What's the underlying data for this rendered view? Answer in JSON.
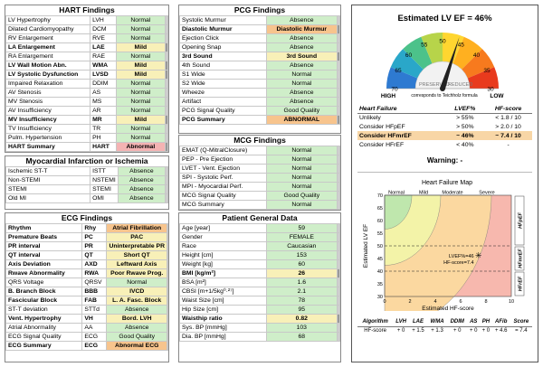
{
  "hart": {
    "title": "HART Findings",
    "rows": [
      {
        "label": "LV Hypertrophy",
        "code": "LVH",
        "value": "Normal",
        "c": "g",
        "b": false
      },
      {
        "label": "Dilated Cardiomyopathy",
        "code": "DCM",
        "value": "Normal",
        "c": "g",
        "b": false
      },
      {
        "label": "RV Enlargement",
        "code": "RVE",
        "value": "Normal",
        "c": "g",
        "b": false
      },
      {
        "label": "LA Enlargement",
        "code": "LAE",
        "value": "Mild",
        "c": "y",
        "b": true
      },
      {
        "label": "RA Enlargement",
        "code": "RAE",
        "value": "Normal",
        "c": "g",
        "b": false
      },
      {
        "label": "LV Wall Motion Abn.",
        "code": "WMA",
        "value": "Mild",
        "c": "y",
        "b": true
      },
      {
        "label": "LV Systolic Dysfunction",
        "code": "LVSD",
        "value": "Mild",
        "c": "y",
        "b": true
      },
      {
        "label": "Impaired Relaxation",
        "code": "DDIM",
        "value": "Normal",
        "c": "g",
        "b": false
      },
      {
        "label": "AV Stenosis",
        "code": "AS",
        "value": "Normal",
        "c": "g",
        "b": false
      },
      {
        "label": "MV Stenosis",
        "code": "MS",
        "value": "Normal",
        "c": "g",
        "b": false
      },
      {
        "label": "AV Insufficiency",
        "code": "AR",
        "value": "Normal",
        "c": "g",
        "b": false
      },
      {
        "label": "MV Insufficiency",
        "code": "MR",
        "value": "Mild",
        "c": "y",
        "b": true
      },
      {
        "label": "TV Insufficiency",
        "code": "TR",
        "value": "Normal",
        "c": "g",
        "b": false
      },
      {
        "label": "Pulm. Hypertension",
        "code": "PH",
        "value": "Normal",
        "c": "g",
        "b": false
      },
      {
        "label": "HART Summary",
        "code": "HART",
        "value": "Abnormal",
        "c": "r",
        "b": true
      }
    ]
  },
  "mi": {
    "title": "Myocardial Infarction or Ischemia",
    "rows": [
      {
        "label": "Ischemic ST-T",
        "code": "ISTT",
        "value": "Absence",
        "c": "g",
        "b": false
      },
      {
        "label": "Non-STEMI",
        "code": "NSTEMI",
        "value": "Absence",
        "c": "g",
        "b": false
      },
      {
        "label": "STEMI",
        "code": "STEMI",
        "value": "Absence",
        "c": "g",
        "b": false
      },
      {
        "label": "Old MI",
        "code": "OMI",
        "value": "Absence",
        "c": "g",
        "b": false
      }
    ]
  },
  "ecg": {
    "title": "ECG Findings",
    "rows": [
      {
        "label": "Rhythm",
        "code": "Rhy",
        "value": "Atrial Fibrillation",
        "c": "o",
        "b": true
      },
      {
        "label": "Premature Beats",
        "code": "PC",
        "value": "PAC",
        "c": "y",
        "b": true
      },
      {
        "label": "PR interval",
        "code": "PR",
        "value": "Uninterpretable PR",
        "c": "y",
        "b": true
      },
      {
        "label": "QT interval",
        "code": "QT",
        "value": "Short QT",
        "c": "y",
        "b": true
      },
      {
        "label": "Axis Deviation",
        "code": "AXD",
        "value": "Leftward Axis",
        "c": "y",
        "b": true
      },
      {
        "label": "Rwave Abnormality",
        "code": "RWA",
        "value": "Poor Rwave Prog.",
        "c": "y",
        "b": true
      },
      {
        "label": "QRS Voltage",
        "code": "QRSV",
        "value": "Normal",
        "c": "g",
        "b": false
      },
      {
        "label": "B. Branch Block",
        "code": "BBB",
        "value": "IVCD",
        "c": "y",
        "b": true
      },
      {
        "label": "Fascicular Block",
        "code": "FAB",
        "value": "L. A. Fasc. Block",
        "c": "y",
        "b": true
      },
      {
        "label": "ST-T deviation",
        "code": "STTd",
        "value": "Absence",
        "c": "g",
        "b": false
      },
      {
        "label": "Vent. Hypertrophy",
        "code": "VH",
        "value": "Bord. LVH",
        "c": "y",
        "b": true
      },
      {
        "label": "Atrial Abnormality",
        "code": "AA",
        "value": "Absence",
        "c": "g",
        "b": false
      },
      {
        "label": "ECG Signal Quality",
        "code": "ECG",
        "value": "Good Quality",
        "c": "g",
        "b": false
      },
      {
        "label": "ECG Summary",
        "code": "ECG",
        "value": "Abnormal ECG",
        "c": "o",
        "b": true
      }
    ]
  },
  "pcg": {
    "title": "PCG Findings",
    "rows": [
      {
        "label": "Systolic Murmur",
        "value": "Absence",
        "c": "g",
        "b": false
      },
      {
        "label": "Diastolic Murmur",
        "value": "Diastolic Murmur",
        "c": "o",
        "b": true
      },
      {
        "label": "Ejection Click",
        "value": "Absence",
        "c": "g",
        "b": false
      },
      {
        "label": "Opening Snap",
        "value": "Absence",
        "c": "g",
        "b": false
      },
      {
        "label": "3rd Sound",
        "value": "3rd Sound",
        "c": "y",
        "b": true
      },
      {
        "label": "4th Sound",
        "value": "Absence",
        "c": "g",
        "b": false
      },
      {
        "label": "S1 Wide",
        "value": "Normal",
        "c": "g",
        "b": false
      },
      {
        "label": "S2 Wide",
        "value": "Normal",
        "c": "g",
        "b": false
      },
      {
        "label": "Wheeze",
        "value": "Absence",
        "c": "g",
        "b": false
      },
      {
        "label": "Artifact",
        "value": "Absence",
        "c": "g",
        "b": false
      },
      {
        "label": "PCG Signal Quality",
        "value": "Good Quality",
        "c": "g",
        "b": false
      },
      {
        "label": "PCG Summary",
        "value": "ABNORMAL",
        "c": "o",
        "b": true
      }
    ]
  },
  "mcg": {
    "title": "MCG Findings",
    "rows": [
      {
        "label": "EMAT (Q-MitralClosure)",
        "value": "Normal",
        "c": "g",
        "b": false
      },
      {
        "label": "PEP - Pre Ejection",
        "value": "Normal",
        "c": "g",
        "b": false
      },
      {
        "label": "LVET - Vent. Ejection",
        "value": "Normal",
        "c": "g",
        "b": false
      },
      {
        "label": "SPI - Systolic Perf.",
        "value": "Normal",
        "c": "g",
        "b": false
      },
      {
        "label": "MPI - Myocardial Perf.",
        "value": "Normal",
        "c": "g",
        "b": false
      },
      {
        "label": "MCG Signal Quality",
        "value": "Good Quality",
        "c": "g",
        "b": false
      },
      {
        "label": "MCG Summary",
        "value": "Normal",
        "c": "g",
        "b": false
      }
    ]
  },
  "patient": {
    "title": "Patient General Data",
    "rows": [
      {
        "label": "Age [year]",
        "value": "59",
        "c": "g",
        "b": false
      },
      {
        "label": "Gender",
        "value": "FEMALE",
        "c": "g",
        "b": false
      },
      {
        "label": "Race",
        "value": "Caucasian",
        "c": "g",
        "b": false
      },
      {
        "label": "Height [cm]",
        "value": "153",
        "c": "g",
        "b": false
      },
      {
        "label": "Weight [kg]",
        "value": "60",
        "c": "g",
        "b": false
      },
      {
        "label": "BMI [kg/m²]",
        "value": "26",
        "c": "y",
        "b": true
      },
      {
        "label": "BSA [m²]",
        "value": "1.6",
        "c": "g",
        "b": false
      },
      {
        "label": "CBSI [m+1/5kg⁰·²⁷]",
        "value": "2.1",
        "c": "g",
        "b": false
      },
      {
        "label": "Waist Size [cm]",
        "value": "78",
        "c": "g",
        "b": false
      },
      {
        "label": "Hip Size [cm]",
        "value": "95",
        "c": "g",
        "b": false
      },
      {
        "label": "Waisthip ratio",
        "value": "0.82",
        "c": "y",
        "b": true
      },
      {
        "label": "Sys. BP [mmHg]",
        "value": "103",
        "c": "g",
        "b": false
      },
      {
        "label": "Dia. BP [mmHg]",
        "value": "68",
        "c": "g",
        "b": false
      }
    ]
  },
  "gauge": {
    "title": "Estimated LV EF = 46%",
    "ticks": [
      "70",
      "65",
      "60",
      "55",
      "50",
      "45",
      "40",
      "35",
      "30"
    ],
    "ef": 46,
    "preserved": "PRESERVED",
    "reduced": "REDUCED",
    "high": "HIGH",
    "low": "LOW",
    "caption": "corresponds to Teichholz formula"
  },
  "hf": {
    "headers": [
      "Heart Failure",
      "LVEF%",
      "HF-score"
    ],
    "rows": [
      {
        "a": "Unlikely",
        "b": "> 55%",
        "c": "< 1.8 / 10",
        "hl": false
      },
      {
        "a": "Consider HFpEF",
        "b": "> 50%",
        "c": "> 2.0 / 10",
        "hl": false
      },
      {
        "a": "Consider HFmrEF",
        "b": "~ 46%",
        "c": "~ 7.4 / 10",
        "hl": true
      },
      {
        "a": "Consider HFrEF",
        "b": "< 40%",
        "c": "-",
        "hl": false
      }
    ],
    "warning": "Warning: -"
  },
  "map": {
    "title": "Heart Failure Map",
    "cols": [
      "Normal",
      "Mild",
      "Moderate",
      "Severe"
    ],
    "ylabel": "Estimated LV EF",
    "xlabel": "Estimated HF-score",
    "bands": [
      "HFpEF",
      "HFmrEF",
      "HFrEF"
    ],
    "yticks": [
      "70",
      "65",
      "60",
      "55",
      "50",
      "45",
      "40",
      "35",
      "30"
    ],
    "xticks": [
      "0",
      "2",
      "4",
      "6",
      "8",
      "10"
    ],
    "pt_label1": "LVEF%=46",
    "pt_label2": "HF-score=7.4",
    "ef": 46,
    "score": 7.4
  },
  "algo": {
    "headers": [
      "Algorithm",
      "LVH",
      "LAE",
      "WMA",
      "DDIM",
      "AS",
      "PH",
      "AFib",
      "Score"
    ],
    "row": [
      "HF-score",
      "+ 0",
      "+ 1.5",
      "+ 1.3",
      "+ 0",
      "+ 0",
      "+ 0",
      "+ 4.6",
      "= 7.4"
    ]
  },
  "colors": {
    "green": "#cfeec9",
    "yellow": "#f8f0b8",
    "orange": "#f7c48d",
    "red": "#f4b3b3"
  }
}
